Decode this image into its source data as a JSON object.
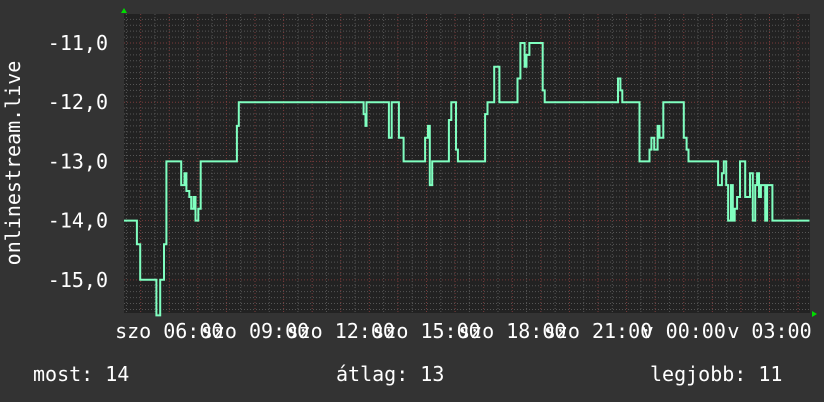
{
  "chart_data": {
    "type": "line",
    "ylabel": "onlinestream.live",
    "ylim": [
      -15.56,
      -10.51
    ],
    "xlim": [
      "szo 04:25",
      "v 04:25"
    ],
    "y_ticks": [
      -11,
      -12,
      -13,
      -14,
      -15
    ],
    "y_tick_labels": [
      "-11,0",
      "-12,0",
      "-13,0",
      "-14,0",
      "-15,0"
    ],
    "x_tick_labels": [
      {
        "time": "szo 06:00",
        "label": "szo 06:00"
      },
      {
        "time": "szo 09:00",
        "label": "szo 09:00"
      },
      {
        "time": "szo 12:00",
        "label": "szo 12:00"
      },
      {
        "time": "szo 15:00",
        "label": "szo 15:00"
      },
      {
        "time": "szo 18:00",
        "label": "szo 18:00"
      },
      {
        "time": "szo 21:00",
        "label": "szo 21:00"
      },
      {
        "time": "v 00:00",
        "label": "v 00:00"
      },
      {
        "time": "v 03:00",
        "label": "v 03:00"
      }
    ],
    "grid": true,
    "colors": {
      "background": "#333333",
      "plot": "#222222",
      "line": "#80ffc0",
      "major_grid": "#7a3a3a",
      "minor_grid": "#555555",
      "arrow": "#00dd00"
    },
    "series": [
      {
        "points": [
          [
            "szo 04:25",
            -14.0
          ],
          [
            "szo 04:52",
            -14.4
          ],
          [
            "szo 04:59",
            -15.0
          ],
          [
            "szo 05:33",
            -15.6
          ],
          [
            "szo 05:41",
            -15.0
          ],
          [
            "szo 05:49",
            -14.4
          ],
          [
            "szo 05:54",
            -13.0
          ],
          [
            "szo 06:25",
            -13.4
          ],
          [
            "szo 06:32",
            -13.2
          ],
          [
            "szo 06:36",
            -13.5
          ],
          [
            "szo 06:42",
            -13.6
          ],
          [
            "szo 06:46",
            -13.8
          ],
          [
            "szo 06:51",
            -13.6
          ],
          [
            "szo 06:55",
            -14.0
          ],
          [
            "szo 07:01",
            -13.8
          ],
          [
            "szo 07:06",
            -13.0
          ],
          [
            "szo 08:22",
            -12.4
          ],
          [
            "szo 08:26",
            -12.0
          ],
          [
            "szo 12:48",
            -12.2
          ],
          [
            "szo 12:52",
            -12.4
          ],
          [
            "szo 12:54",
            -12.0
          ],
          [
            "szo 13:41",
            -12.6
          ],
          [
            "szo 13:47",
            -12.0
          ],
          [
            "szo 14:02",
            -12.6
          ],
          [
            "szo 14:12",
            -13.0
          ],
          [
            "szo 14:57",
            -12.6
          ],
          [
            "szo 15:03",
            -12.4
          ],
          [
            "szo 15:07",
            -13.4
          ],
          [
            "szo 15:12",
            -13.0
          ],
          [
            "szo 15:47",
            -12.3
          ],
          [
            "szo 15:52",
            -12.0
          ],
          [
            "szo 16:02",
            -12.8
          ],
          [
            "szo 16:06",
            -13.0
          ],
          [
            "szo 17:03",
            -12.2
          ],
          [
            "szo 17:08",
            -12.0
          ],
          [
            "szo 17:22",
            -11.4
          ],
          [
            "szo 17:33",
            -12.0
          ],
          [
            "szo 18:11",
            -11.6
          ],
          [
            "szo 18:17",
            -11.0
          ],
          [
            "szo 18:26",
            -11.4
          ],
          [
            "szo 18:30",
            -11.2
          ],
          [
            "szo 18:36",
            -11.0
          ],
          [
            "szo 19:04",
            -11.8
          ],
          [
            "szo 19:08",
            -12.0
          ],
          [
            "szo 21:42",
            -11.6
          ],
          [
            "szo 21:47",
            -11.8
          ],
          [
            "szo 21:51",
            -12.0
          ],
          [
            "szo 22:27",
            -13.0
          ],
          [
            "szo 22:48",
            -12.8
          ],
          [
            "szo 22:52",
            -12.6
          ],
          [
            "szo 22:58",
            -12.8
          ],
          [
            "szo 23:05",
            -12.4
          ],
          [
            "szo 23:09",
            -12.6
          ],
          [
            "szo 23:17",
            -12.0
          ],
          [
            "v 00:00",
            -12.6
          ],
          [
            "v 00:06",
            -12.8
          ],
          [
            "v 00:10",
            -13.0
          ],
          [
            "v 01:12",
            -13.4
          ],
          [
            "v 01:20",
            -13.2
          ],
          [
            "v 01:24",
            -13.0
          ],
          [
            "v 01:29",
            -13.4
          ],
          [
            "v 01:33",
            -14.0
          ],
          [
            "v 01:39",
            -13.4
          ],
          [
            "v 01:43",
            -14.0
          ],
          [
            "v 01:47",
            -13.8
          ],
          [
            "v 01:52",
            -13.6
          ],
          [
            "v 01:58",
            -13.0
          ],
          [
            "v 02:09",
            -13.6
          ],
          [
            "v 02:19",
            -13.2
          ],
          [
            "v 02:25",
            -14.0
          ],
          [
            "v 02:30",
            -13.4
          ],
          [
            "v 02:34",
            -13.2
          ],
          [
            "v 02:38",
            -13.6
          ],
          [
            "v 02:42",
            -13.4
          ],
          [
            "v 02:51",
            -14.0
          ],
          [
            "v 02:55",
            -13.4
          ],
          [
            "v 03:06",
            -14.0
          ],
          [
            "v 04:24",
            -14.0
          ]
        ]
      }
    ]
  },
  "legend": {
    "current": "most: 14",
    "average": "átlag: 13",
    "best": "legjobb: 11"
  }
}
